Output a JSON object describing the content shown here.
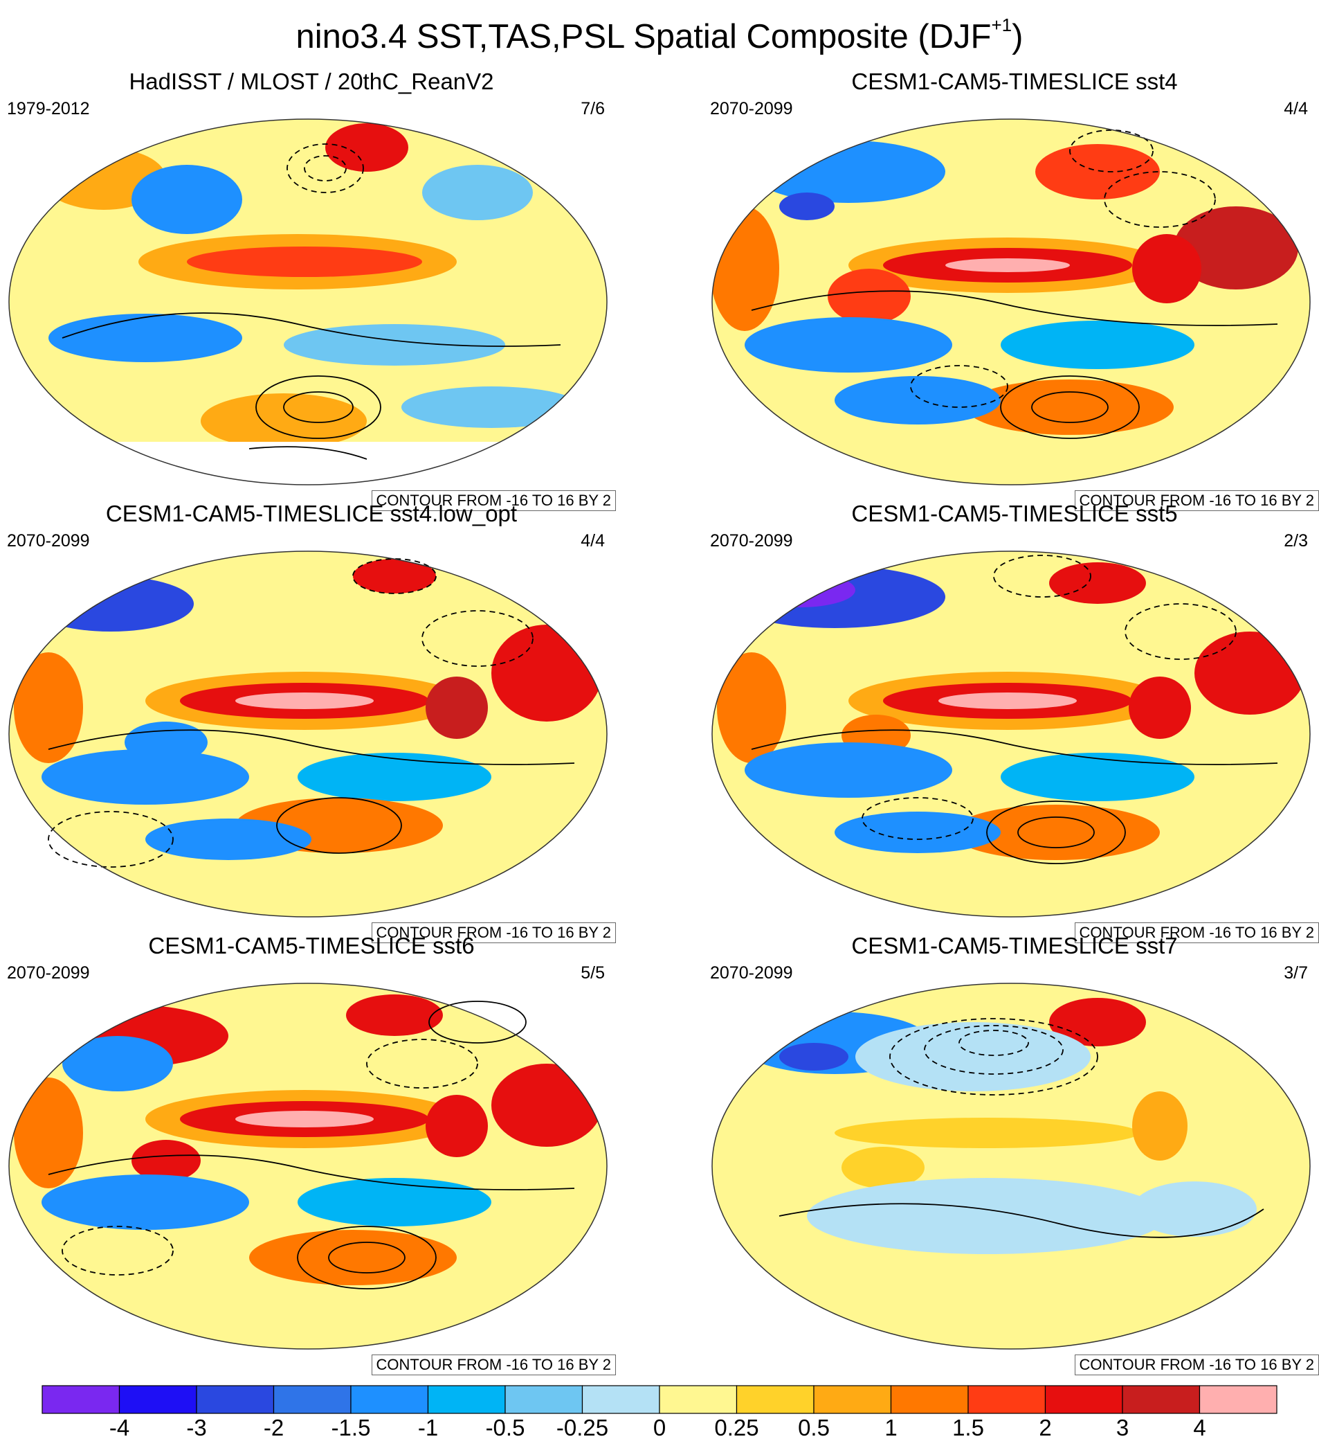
{
  "title_main": "nino3.4 SST,TAS,PSL Spatial Composite (DJF",
  "title_sup": "+1",
  "title_close": ")",
  "panels": [
    {
      "title": "HadISST / MLOST / 20thC_ReanV2",
      "period": "1979-2012",
      "count": "7/6",
      "contour_note": "CONTOUR FROM -16 TO 16 BY 2"
    },
    {
      "title": "CESM1-CAM5-TIMESLICE sst4",
      "period": "2070-2099",
      "count": "4/4",
      "contour_note": "CONTOUR FROM -16 TO 16 BY 2"
    },
    {
      "title": "CESM1-CAM5-TIMESLICE sst4.low_opt",
      "period": "2070-2099",
      "count": "4/4",
      "contour_note": "CONTOUR FROM -16 TO 16 BY 2"
    },
    {
      "title": "CESM1-CAM5-TIMESLICE sst5",
      "period": "2070-2099",
      "count": "2/3",
      "contour_note": "CONTOUR FROM -16 TO 16 BY 2"
    },
    {
      "title": "CESM1-CAM5-TIMESLICE sst6",
      "period": "2070-2099",
      "count": "5/5",
      "contour_note": "CONTOUR FROM -16 TO 16 BY 2"
    },
    {
      "title": "CESM1-CAM5-TIMESLICE sst7",
      "period": "2070-2099",
      "count": "3/7",
      "contour_note": "CONTOUR FROM -16 TO 16 BY 2"
    }
  ],
  "colorbar": {
    "labels": [
      "-4",
      "-3",
      "-2",
      "-1.5",
      "-1",
      "-0.5",
      "-0.25",
      "0",
      "0.25",
      "0.5",
      "1",
      "1.5",
      "2",
      "3",
      "4"
    ],
    "colors": [
      "#7a28f0",
      "#1e0ff5",
      "#2a48e0",
      "#2f74e8",
      "#1e90ff",
      "#00b4f5",
      "#6ec6f2",
      "#b4e1f5",
      "#fff791",
      "#ffd22a",
      "#ffaa14",
      "#ff7800",
      "#ff3c14",
      "#e60f0f",
      "#c81e1e",
      "#ffafaf"
    ]
  }
}
